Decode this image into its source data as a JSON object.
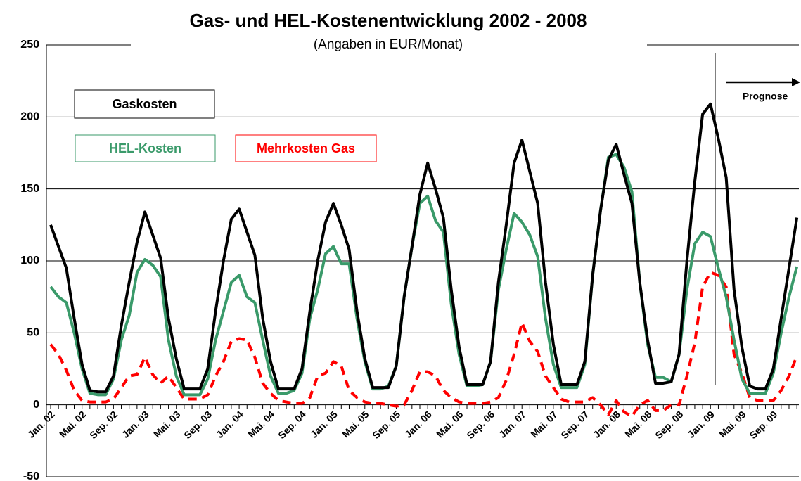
{
  "chart_data": {
    "type": "line",
    "title": "Gas- und HEL-Kostenentwicklung 2002 - 2008",
    "subtitle": "(Angaben in EUR/Monat)",
    "annotation": "Prognose",
    "categories": [
      "Jan. 02",
      null,
      null,
      null,
      "Mai. 02",
      null,
      null,
      null,
      "Sep. 02",
      null,
      null,
      null,
      "Jan. 03",
      null,
      null,
      null,
      "Mai. 03",
      null,
      null,
      null,
      "Sep. 03",
      null,
      null,
      null,
      "Jan. 04",
      null,
      null,
      null,
      "Mai. 04",
      null,
      null,
      null,
      "Sep. 04",
      null,
      null,
      null,
      "Jan. 05",
      null,
      null,
      null,
      "Mai. 05",
      null,
      null,
      null,
      "Sep. 05",
      null,
      null,
      null,
      "Jan. 06",
      null,
      null,
      null,
      "Mai. 06",
      null,
      null,
      null,
      "Sep. 06",
      null,
      null,
      null,
      "Jan. 07",
      null,
      null,
      null,
      "Mai. 07",
      null,
      null,
      null,
      "Sep. 07",
      null,
      null,
      null,
      "Jan. 08",
      null,
      null,
      null,
      "Mai. 08",
      null,
      null,
      null,
      "Sep. 08",
      null,
      null,
      null,
      "Jan. 09",
      null,
      null,
      null,
      "Mai. 09",
      null,
      null,
      null,
      "Sep. 09",
      null,
      null,
      null
    ],
    "series": [
      {
        "name": "Gaskosten",
        "color": "#000000",
        "dashed": false,
        "values": [
          125,
          110,
          95,
          60,
          28,
          10,
          9,
          9,
          20,
          55,
          85,
          113,
          134,
          118,
          102,
          60,
          32,
          11,
          11,
          11,
          25,
          65,
          100,
          129,
          136,
          120,
          104,
          60,
          30,
          11,
          11,
          11,
          25,
          65,
          100,
          127,
          140,
          125,
          108,
          65,
          32,
          12,
          12,
          12,
          27,
          75,
          110,
          146,
          168,
          150,
          130,
          80,
          40,
          14,
          14,
          14,
          30,
          85,
          125,
          168,
          184,
          162,
          140,
          85,
          42,
          14,
          14,
          14,
          30,
          90,
          135,
          170,
          181,
          160,
          140,
          85,
          45,
          15,
          15,
          16,
          35,
          100,
          155,
          202,
          209,
          185,
          158,
          80,
          40,
          13,
          11,
          11,
          25,
          60,
          95,
          130
        ]
      },
      {
        "name": "HEL-Kosten",
        "color": "#3a9a6a",
        "dashed": false,
        "values": [
          82,
          75,
          71,
          50,
          25,
          8,
          7,
          7,
          18,
          45,
          62,
          92,
          101,
          97,
          89,
          45,
          20,
          7,
          7,
          7,
          18,
          45,
          65,
          85,
          90,
          75,
          71,
          45,
          20,
          8,
          8,
          10,
          22,
          60,
          80,
          105,
          110,
          98,
          98,
          60,
          30,
          11,
          11,
          13,
          27,
          75,
          110,
          140,
          145,
          128,
          120,
          70,
          35,
          13,
          13,
          14,
          30,
          80,
          108,
          133,
          127,
          118,
          103,
          60,
          28,
          12,
          12,
          12,
          28,
          90,
          135,
          172,
          174,
          165,
          148,
          85,
          42,
          19,
          19,
          16,
          35,
          80,
          112,
          120,
          117,
          95,
          75,
          45,
          18,
          8,
          8,
          8,
          22,
          50,
          75,
          96
        ]
      },
      {
        "name": "Mehrkosten Gas",
        "color": "#ff0000",
        "dashed": true,
        "values": [
          42,
          35,
          24,
          10,
          3,
          2,
          2,
          2,
          4,
          12,
          20,
          21,
          33,
          21,
          15,
          20,
          12,
          4,
          4,
          4,
          7,
          20,
          30,
          44,
          46,
          45,
          33,
          15,
          8,
          3,
          2,
          1,
          1,
          5,
          20,
          22,
          30,
          27,
          10,
          5,
          2,
          1,
          1,
          0,
          -1,
          0,
          10,
          23,
          23,
          20,
          10,
          5,
          2,
          1,
          1,
          1,
          2,
          5,
          17,
          35,
          57,
          44,
          37,
          20,
          12,
          4,
          2,
          2,
          2,
          5,
          0,
          -7,
          3,
          -5,
          -8,
          0,
          3,
          -4,
          -4,
          0,
          0,
          20,
          43,
          82,
          92,
          90,
          82,
          35,
          22,
          5,
          3,
          3,
          3,
          10,
          20,
          34
        ]
      }
    ],
    "ylim": [
      -50,
      250
    ],
    "yticks": [
      -50,
      0,
      50,
      100,
      150,
      200,
      250
    ],
    "grid": true
  }
}
